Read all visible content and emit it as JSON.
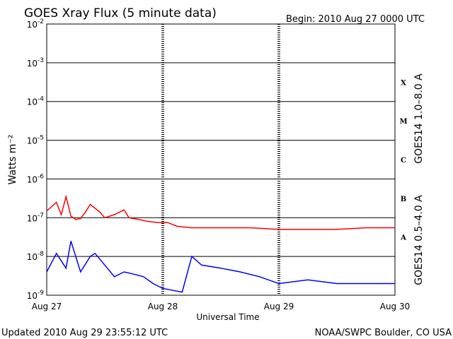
{
  "title": "GOES Xray Flux (5 minute data)",
  "begin": "Begin:  2010 Aug 27 0000 UTC",
  "updated": "Updated 2010 Aug 29 23:55:12 UTC",
  "credit": "NOAA/SWPC Boulder, CO USA",
  "colors": {
    "long": "#ff0000",
    "short": "#0000ff",
    "grid": "#000000"
  },
  "chart_data": {
    "type": "line",
    "title": "GOES Xray Flux (5 minute data)",
    "xlabel": "Universal Time",
    "ylabel": "Watts m⁻²",
    "yscale": "log",
    "ylim": [
      1e-09,
      0.01
    ],
    "xlim": [
      "2010 Aug 27 00:00",
      "2010 Aug 30 00:00"
    ],
    "x_ticks": [
      "Aug 27",
      "Aug 28",
      "Aug 29",
      "Aug 30"
    ],
    "y_ticks": [
      {
        "base": "10",
        "exp": "-9"
      },
      {
        "base": "10",
        "exp": "-8"
      },
      {
        "base": "10",
        "exp": "-7"
      },
      {
        "base": "10",
        "exp": "-6"
      },
      {
        "base": "10",
        "exp": "-5"
      },
      {
        "base": "10",
        "exp": "-4"
      },
      {
        "base": "10",
        "exp": "-3"
      },
      {
        "base": "10",
        "exp": "-2"
      }
    ],
    "flare_classes": [
      "A",
      "B",
      "C",
      "M",
      "X"
    ],
    "grid": true,
    "series": [
      {
        "name": "GOES14 1.0–8.0 A",
        "color": "#ff0000",
        "x": [
          "2010 Aug 27 00:00",
          "2010 Aug 27 02:00",
          "2010 Aug 27 03:00",
          "2010 Aug 27 04:00",
          "2010 Aug 27 05:00",
          "2010 Aug 27 06:00",
          "2010 Aug 27 07:00",
          "2010 Aug 27 08:00",
          "2010 Aug 27 09:00",
          "2010 Aug 27 11:00",
          "2010 Aug 27 12:00",
          "2010 Aug 27 14:00",
          "2010 Aug 27 16:00",
          "2010 Aug 27 17:00",
          "2010 Aug 27 19:00",
          "2010 Aug 27 21:00",
          "2010 Aug 27 23:00",
          "2010 Aug 28 01:00",
          "2010 Aug 28 03:00",
          "2010 Aug 28 06:00",
          "2010 Aug 28 12:00",
          "2010 Aug 28 18:00",
          "2010 Aug 29 00:00",
          "2010 Aug 29 04:00",
          "2010 Aug 29 12:00",
          "2010 Aug 29 18:00",
          "2010 Aug 30 00:00"
        ],
        "y": [
          1.5e-07,
          2.5e-07,
          1.2e-07,
          3.5e-07,
          1.1e-07,
          9e-08,
          9.5e-08,
          1.4e-07,
          2.2e-07,
          1.4e-07,
          1e-07,
          1.2e-07,
          1.6e-07,
          1e-07,
          9e-08,
          8e-08,
          7.5e-08,
          7.5e-08,
          6e-08,
          5.5e-08,
          5.5e-08,
          5.5e-08,
          5e-08,
          5e-08,
          5e-08,
          5.5e-08,
          5.5e-08
        ]
      },
      {
        "name": "GOES14 0.5–4.0 A",
        "color": "#0000ff",
        "x": [
          "2010 Aug 27 00:00",
          "2010 Aug 27 02:00",
          "2010 Aug 27 04:00",
          "2010 Aug 27 05:00",
          "2010 Aug 27 07:00",
          "2010 Aug 27 09:00",
          "2010 Aug 27 10:00",
          "2010 Aug 27 12:00",
          "2010 Aug 27 14:00",
          "2010 Aug 27 16:00",
          "2010 Aug 27 18:00",
          "2010 Aug 27 20:00",
          "2010 Aug 27 22:00",
          "2010 Aug 28 00:00",
          "2010 Aug 28 04:00",
          "2010 Aug 28 06:00",
          "2010 Aug 28 08:00",
          "2010 Aug 28 12:00",
          "2010 Aug 28 16:00",
          "2010 Aug 28 20:00",
          "2010 Aug 29 00:00",
          "2010 Aug 29 06:00",
          "2010 Aug 29 12:00",
          "2010 Aug 29 18:00",
          "2010 Aug 30 00:00"
        ],
        "y": [
          4e-09,
          1.2e-08,
          5e-09,
          2.5e-08,
          4e-09,
          1e-08,
          1.2e-08,
          6e-09,
          3e-09,
          4e-09,
          3.5e-09,
          3e-09,
          2e-09,
          1.5e-09,
          1.2e-09,
          1e-08,
          6e-09,
          5e-09,
          4e-09,
          3e-09,
          2e-09,
          2.5e-09,
          2e-09,
          2e-09,
          2e-09
        ]
      }
    ]
  }
}
